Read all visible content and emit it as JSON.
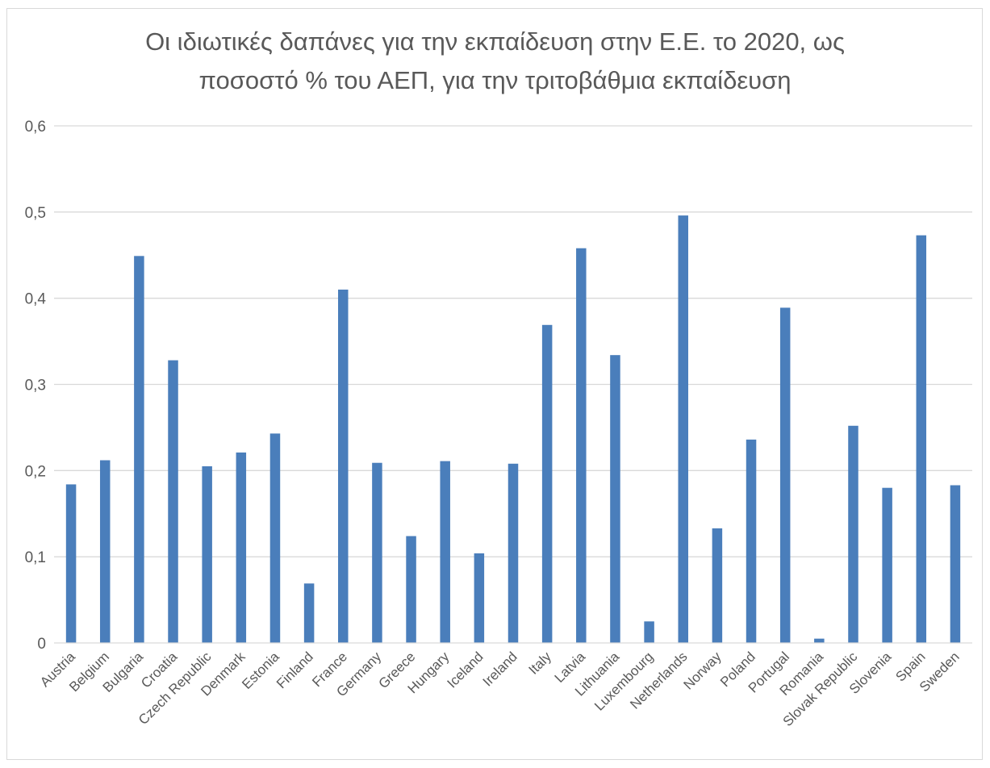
{
  "chart_data": {
    "type": "bar",
    "title_lines": [
      "Οι ιδιωτικές δαπάνες για την εκπαίδευση στην Ε.Ε. το 2020, ως",
      "ποσοστό % του ΑΕΠ, για την τριτοβάθμια εκπαίδευση"
    ],
    "xlabel": "",
    "ylabel": "",
    "ylim": [
      0,
      0.6
    ],
    "yticks": [
      "0",
      "0,1",
      "0,2",
      "0,3",
      "0,4",
      "0,5",
      "0,6"
    ],
    "grid": true,
    "legend": "none",
    "bar_color": "#4a7ebb",
    "gridline_color": "#d9d9d9",
    "categories": [
      "Austria",
      "Belgium",
      "Bulgaria",
      "Croatia",
      "Czech Republic",
      "Denmark",
      "Estonia",
      "Finland",
      "France",
      "Germany",
      "Greece",
      "Hungary",
      "Iceland",
      "Ireland",
      "Italy",
      "Latvia",
      "Lithuania",
      "Luxembourg",
      "Netherlands",
      "Norway",
      "Poland",
      "Portugal",
      "Romania",
      "Slovak Republic",
      "Slovenia",
      "Spain",
      "Sweden"
    ],
    "values": [
      0.184,
      0.212,
      0.449,
      0.328,
      0.205,
      0.221,
      0.243,
      0.069,
      0.41,
      0.209,
      0.124,
      0.211,
      0.104,
      0.208,
      0.369,
      0.458,
      0.334,
      0.025,
      0.496,
      0.133,
      0.236,
      0.389,
      0.005,
      0.252,
      0.18,
      0.473,
      0.183
    ]
  }
}
